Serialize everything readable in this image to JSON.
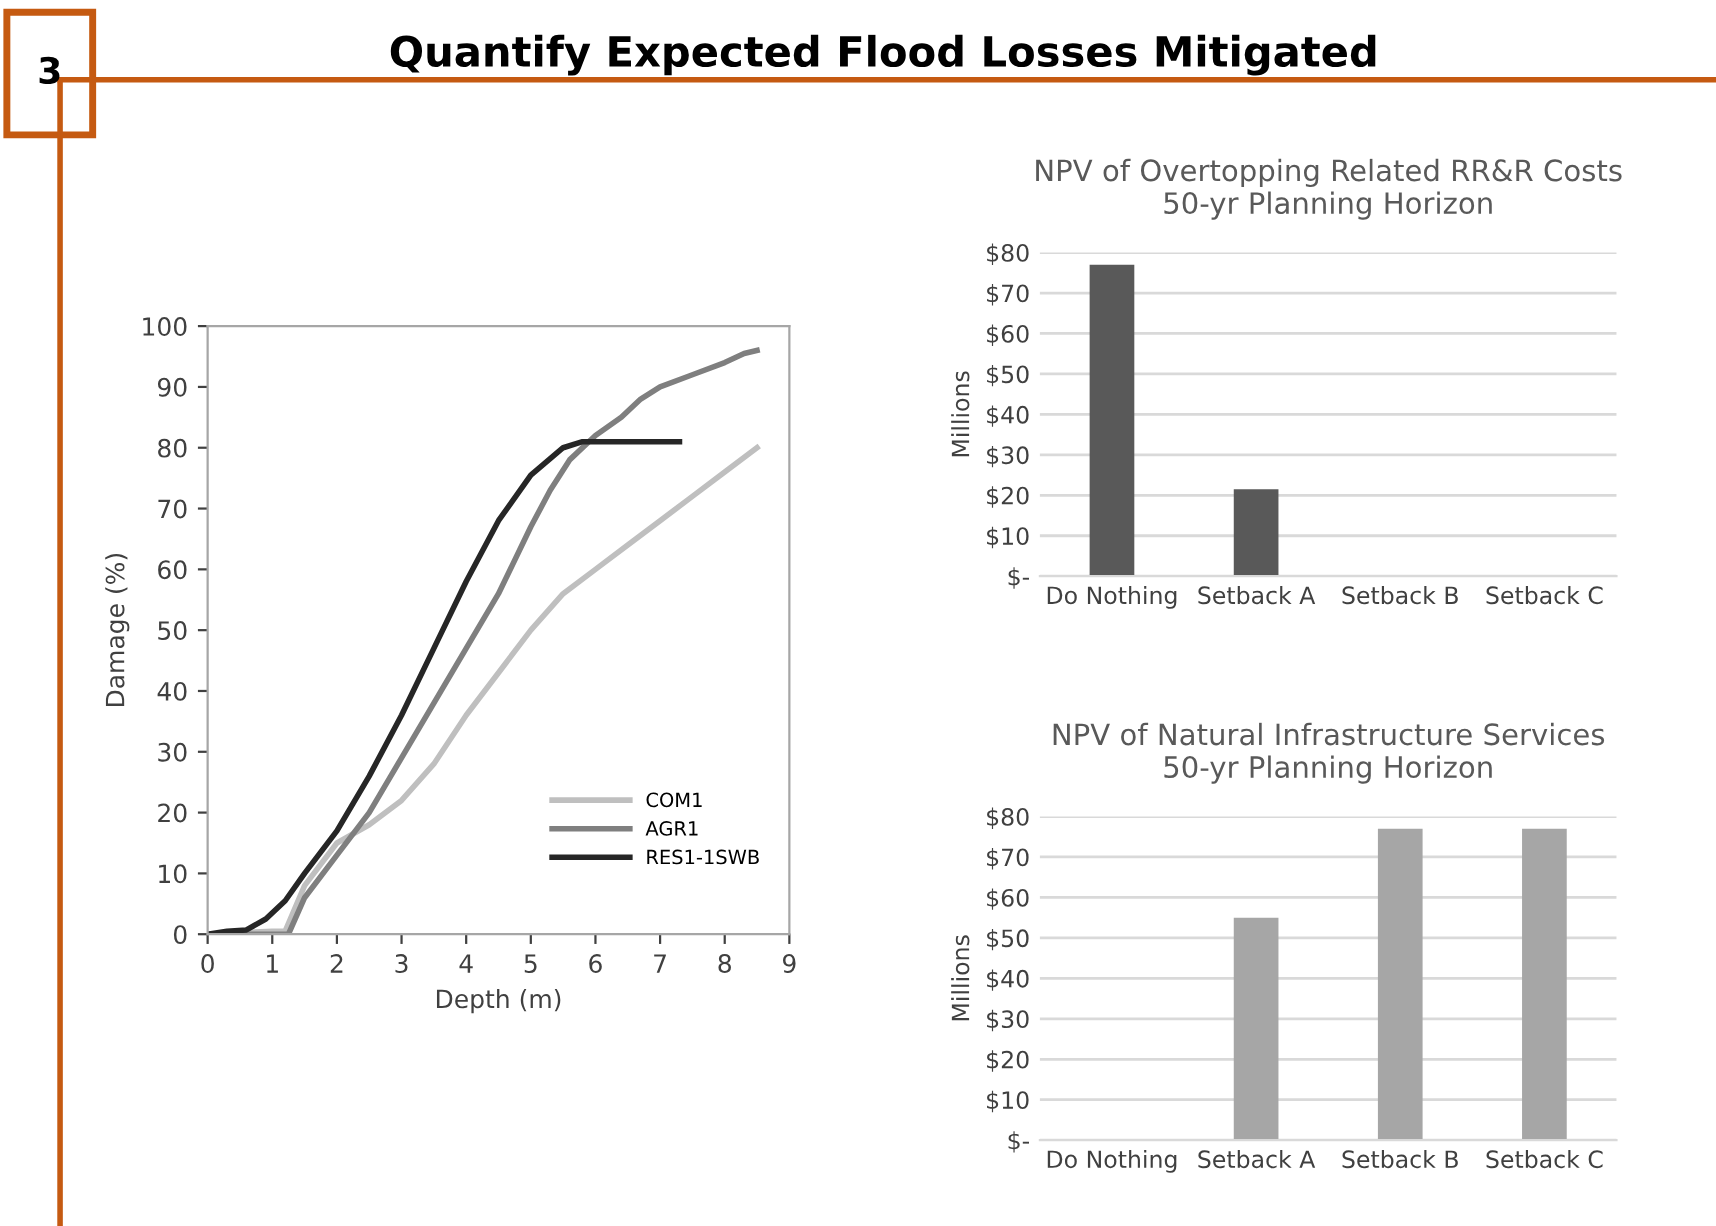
{
  "chart_data": [
    {
      "type": "line",
      "annotations": [
        "3",
        "Quantify Expected Flood Losses Mitigated"
      ],
      "xlabel": "Depth (m)",
      "ylabel": "Damage (%)",
      "xlim": [
        0,
        9
      ],
      "xticks": [
        0,
        1,
        2,
        3,
        4,
        5,
        6,
        7,
        8,
        9
      ],
      "ylim": [
        0,
        100
      ],
      "yticks": [
        0,
        10,
        20,
        30,
        40,
        50,
        60,
        70,
        80,
        90,
        100
      ],
      "grid": false,
      "legend": "bottom right",
      "series": [
        {
          "name": "COM1",
          "color": "#bfbfbf",
          "x": [
            0,
            1,
            1.2,
            1.5,
            2,
            2.5,
            3,
            3.5,
            4,
            4.5,
            5,
            5.5,
            6,
            6.5,
            7,
            7.5,
            8,
            8.5
          ],
          "values": [
            0,
            0.5,
            0.5,
            8,
            15,
            18,
            22,
            28,
            36,
            43,
            50,
            56,
            60,
            64,
            68,
            72,
            76,
            80
          ]
        },
        {
          "name": "AGR1",
          "color": "#7f7f7f",
          "x": [
            0,
            1.25,
            1.5,
            2,
            2.5,
            3,
            3.5,
            4,
            4.5,
            5,
            5.3,
            5.6,
            6,
            6.4,
            6.7,
            7,
            7.5,
            8,
            8.3,
            8.5
          ],
          "values": [
            0,
            0,
            6,
            13,
            20,
            29,
            38,
            47,
            56,
            67,
            73,
            78,
            82,
            85,
            88,
            90,
            92,
            94,
            95.5,
            96
          ]
        },
        {
          "name": "RES1-1SWB",
          "color": "#262626",
          "x": [
            0,
            0.3,
            0.6,
            0.9,
            1.2,
            1.5,
            2,
            2.5,
            3,
            3.5,
            4,
            4.5,
            5,
            5.5,
            5.8,
            6,
            7.3
          ],
          "values": [
            0,
            0.5,
            0.7,
            2.5,
            5.5,
            10,
            17,
            26,
            36,
            47,
            58,
            68,
            75.5,
            80,
            81,
            81,
            81
          ]
        }
      ]
    },
    {
      "type": "bar",
      "title": "NPV of Overtopping Related RR&R Costs\n50-yr Planning Horizon",
      "ylabel": "Millions",
      "categories": [
        "Do Nothing",
        "Setback A",
        "Setback B",
        "Setback C"
      ],
      "values": [
        77,
        21.5,
        0,
        0
      ],
      "color": "#595959",
      "ylim": [
        0,
        80
      ],
      "yticks": [
        {
          "value": 0,
          "label": "$-"
        },
        {
          "value": 10,
          "label": "$10"
        },
        {
          "value": 20,
          "label": "$20"
        },
        {
          "value": 30,
          "label": "$30"
        },
        {
          "value": 40,
          "label": "$40"
        },
        {
          "value": 50,
          "label": "$50"
        },
        {
          "value": 60,
          "label": "$60"
        },
        {
          "value": 70,
          "label": "$70"
        },
        {
          "value": 80,
          "label": "$80"
        }
      ],
      "grid": "y"
    },
    {
      "type": "bar",
      "title": "NPV of Natural Infrastructure Services\n50-yr Planning Horizon",
      "ylabel": "Millions",
      "categories": [
        "Do Nothing",
        "Setback A",
        "Setback B",
        "Setback C"
      ],
      "values": [
        0,
        55,
        77,
        77
      ],
      "color": "#a6a6a6",
      "ylim": [
        0,
        80
      ],
      "yticks": [
        {
          "value": 0,
          "label": "$-"
        },
        {
          "value": 10,
          "label": "$10"
        },
        {
          "value": 20,
          "label": "$20"
        },
        {
          "value": 30,
          "label": "$30"
        },
        {
          "value": 40,
          "label": "$40"
        },
        {
          "value": 50,
          "label": "$50"
        },
        {
          "value": 60,
          "label": "$60"
        },
        {
          "value": 70,
          "label": "$70"
        },
        {
          "value": 80,
          "label": "$80"
        }
      ],
      "grid": "y"
    }
  ]
}
